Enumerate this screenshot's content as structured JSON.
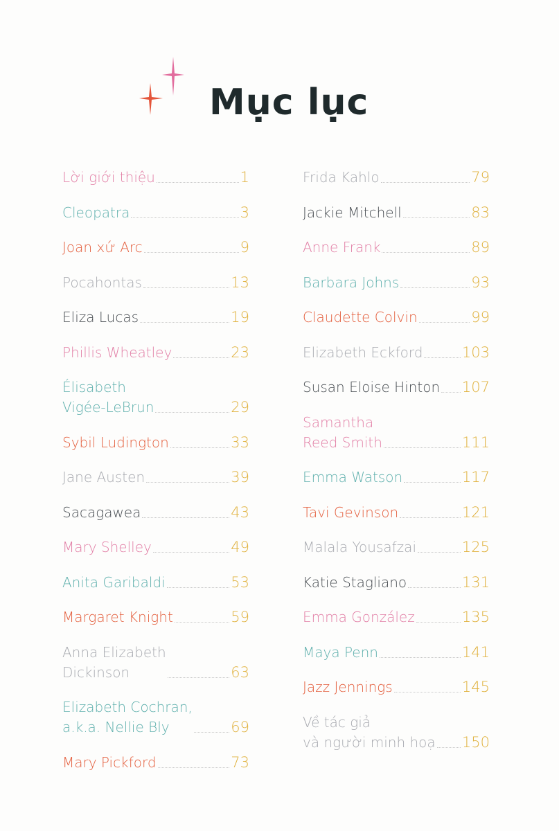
{
  "title": "Mục lục",
  "colors": {
    "pink": "#e27fa6",
    "teal": "#5fb0ad",
    "orange": "#e4603f",
    "gray": "#a8aab0",
    "dark": "#4a4f54",
    "number": "#e0b23f"
  },
  "left": [
    {
      "name": "Lời giới thiệu",
      "page": "1",
      "color": "pink"
    },
    {
      "name": "Cleopatra",
      "page": "3",
      "color": "teal"
    },
    {
      "name": "Joan xứ Arc",
      "page": "9",
      "color": "orange"
    },
    {
      "name": "Pocahontas",
      "page": "13",
      "color": "gray"
    },
    {
      "name": "Eliza Lucas",
      "page": "19",
      "color": "dark"
    },
    {
      "name": "Phillis Wheatley",
      "page": "23",
      "color": "pink"
    },
    {
      "name": "Élisabeth\nVigée-LeBrun",
      "page": "29",
      "color": "teal"
    },
    {
      "name": "Sybil Ludington",
      "page": "33",
      "color": "orange"
    },
    {
      "name": "Jane Austen",
      "page": "39",
      "color": "gray"
    },
    {
      "name": "Sacagawea",
      "page": "43",
      "color": "dark"
    },
    {
      "name": "Mary Shelley",
      "page": "49",
      "color": "pink"
    },
    {
      "name": "Anita Garibaldi",
      "page": "53",
      "color": "teal"
    },
    {
      "name": "Margaret Knight",
      "page": "59",
      "color": "orange"
    },
    {
      "name": "Anna Elizabeth\nDickinson",
      "page": "63",
      "color": "gray"
    },
    {
      "name": "Elizabeth Cochran,\na.k.a. Nellie Bly",
      "page": "69",
      "color": "teal"
    },
    {
      "name": "Mary Pickford",
      "page": "73",
      "color": "orange"
    }
  ],
  "right": [
    {
      "name": "Frida Kahlo",
      "page": "79",
      "color": "gray"
    },
    {
      "name": "Jackie Mitchell",
      "page": "83",
      "color": "dark"
    },
    {
      "name": "Anne Frank",
      "page": "89",
      "color": "pink"
    },
    {
      "name": "Barbara Johns",
      "page": "93",
      "color": "teal"
    },
    {
      "name": "Claudette Colvin",
      "page": "99",
      "color": "orange"
    },
    {
      "name": "Elizabeth Eckford",
      "page": "103",
      "color": "gray"
    },
    {
      "name": "Susan Eloise Hinton",
      "page": "107",
      "color": "dark"
    },
    {
      "name": "Samantha\nReed Smith",
      "page": "111",
      "color": "pink"
    },
    {
      "name": "Emma Watson",
      "page": "117",
      "color": "teal"
    },
    {
      "name": "Tavi Gevinson",
      "page": "121",
      "color": "orange"
    },
    {
      "name": "Malala Yousafzai",
      "page": "125",
      "color": "gray"
    },
    {
      "name": "Katie Stagliano",
      "page": "131",
      "color": "dark"
    },
    {
      "name": "Emma González",
      "page": "135",
      "color": "pink"
    },
    {
      "name": "Maya Penn",
      "page": "141",
      "color": "teal"
    },
    {
      "name": "Jazz Jennings",
      "page": "145",
      "color": "orange"
    },
    {
      "name": "Về tác giả\nvà người minh hoạ",
      "page": "150",
      "color": "gray"
    }
  ]
}
